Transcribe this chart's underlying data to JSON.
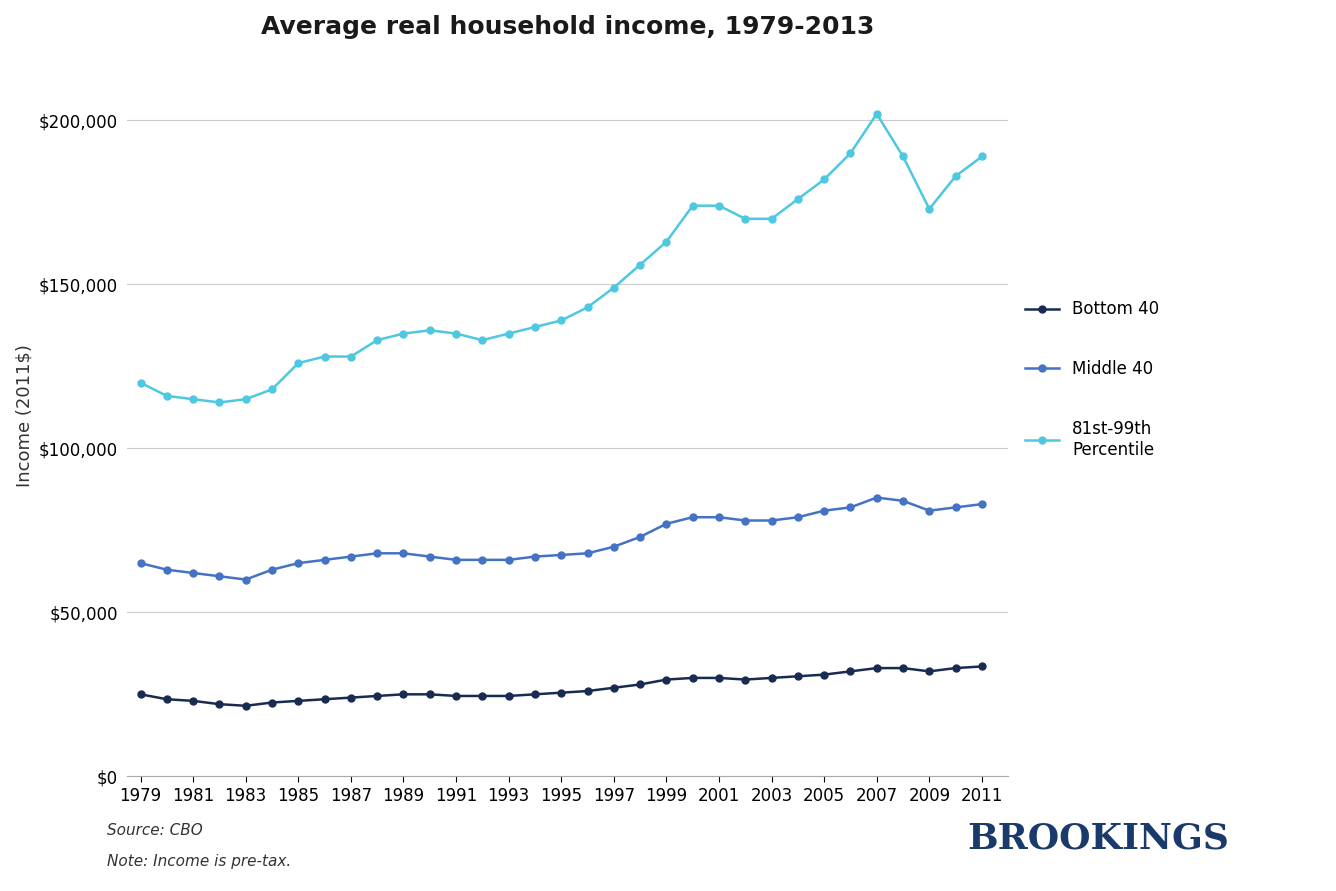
{
  "title": "Average real household income, 1979-2013",
  "xlabel": "",
  "ylabel": "Income (2011$)",
  "source_text": "Source: CBO",
  "note_text": "Note: Income is pre-tax.",
  "brookings_text": "BROOKINGS",
  "years": [
    1979,
    1980,
    1981,
    1982,
    1983,
    1984,
    1985,
    1986,
    1987,
    1988,
    1989,
    1990,
    1991,
    1992,
    1993,
    1994,
    1995,
    1996,
    1997,
    1998,
    1999,
    2000,
    2001,
    2002,
    2003,
    2004,
    2005,
    2006,
    2007,
    2008,
    2009,
    2010,
    2011
  ],
  "bottom40": [
    25000,
    23500,
    23000,
    22000,
    21500,
    22500,
    23000,
    23500,
    24000,
    24500,
    25000,
    25000,
    24500,
    24500,
    24500,
    25000,
    25500,
    26000,
    27000,
    28000,
    29500,
    30000,
    30000,
    29500,
    30000,
    30500,
    31000,
    32000,
    33000,
    33000,
    32000,
    33000,
    33500
  ],
  "middle40": [
    65000,
    63000,
    62000,
    61000,
    60000,
    63000,
    65000,
    66000,
    67000,
    68000,
    68000,
    67000,
    66000,
    66000,
    66000,
    67000,
    67500,
    68000,
    70000,
    73000,
    77000,
    79000,
    79000,
    78000,
    78000,
    79000,
    81000,
    82000,
    85000,
    84000,
    81000,
    82000,
    83000
  ],
  "pct81_99": [
    120000,
    116000,
    115000,
    114000,
    115000,
    118000,
    126000,
    128000,
    128000,
    133000,
    135000,
    136000,
    135000,
    133000,
    135000,
    137000,
    139000,
    143000,
    149000,
    156000,
    163000,
    174000,
    174000,
    170000,
    170000,
    176000,
    182000,
    190000,
    202000,
    189000,
    173000,
    183000,
    189000
  ],
  "bottom40_color": "#1a2b52",
  "middle40_color": "#4472c4",
  "pct81_99_color": "#4ec8e0",
  "background_color": "#ffffff",
  "grid_color": "#cccccc",
  "ylim": [
    0,
    220000
  ],
  "yticks": [
    0,
    50000,
    100000,
    150000,
    200000
  ],
  "xtick_labels": [
    "1979",
    "1981",
    "1983",
    "1985",
    "1987",
    "1989",
    "1991",
    "1993",
    "1995",
    "1997",
    "1999",
    "2001",
    "2003",
    "2005",
    "2007",
    "2009",
    "2011"
  ],
  "legend_labels": [
    "Bottom 40",
    "Middle 40",
    "81st-99th\nPercentile"
  ],
  "title_fontsize": 18,
  "axis_label_fontsize": 13,
  "tick_fontsize": 12,
  "legend_fontsize": 12,
  "source_fontsize": 11,
  "brookings_fontsize": 26
}
